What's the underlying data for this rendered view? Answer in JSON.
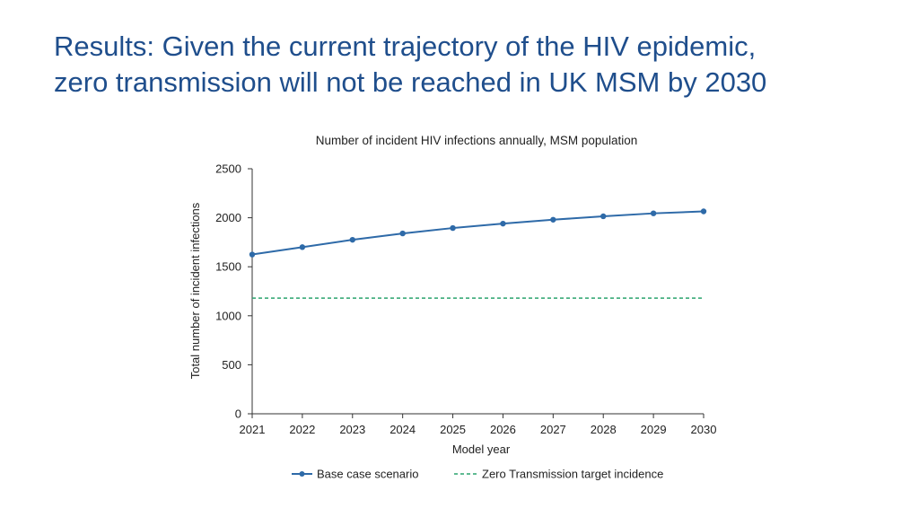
{
  "slide": {
    "title_line1": "Results: Given the current trajectory of the HIV epidemic,",
    "title_line2": "zero transmission will not be reached in UK MSM by 2030"
  },
  "colors": {
    "title": "#1f4e8c",
    "base_series": "#2e6aa8",
    "target_series": "#2aa46e",
    "axis": "#333333"
  },
  "chart_data": {
    "type": "line",
    "title": "Number of incident HIV infections annually, MSM population",
    "xlabel": "Model year",
    "ylabel": "Total number of incident infections",
    "x": [
      2021,
      2022,
      2023,
      2024,
      2025,
      2026,
      2027,
      2028,
      2029,
      2030
    ],
    "ylim": [
      0,
      2500
    ],
    "yticks": [
      0,
      500,
      1000,
      1500,
      2000,
      2500
    ],
    "grid": false,
    "legend_position": "bottom",
    "series": [
      {
        "name": "Base case scenario",
        "style": "solid-markers",
        "values": [
          1625,
          1700,
          1775,
          1840,
          1895,
          1940,
          1980,
          2015,
          2045,
          2065
        ]
      },
      {
        "name": "Zero Transmission target incidence",
        "style": "dashed",
        "values": [
          1180,
          1180,
          1180,
          1180,
          1180,
          1180,
          1180,
          1180,
          1180,
          1180
        ]
      }
    ]
  }
}
